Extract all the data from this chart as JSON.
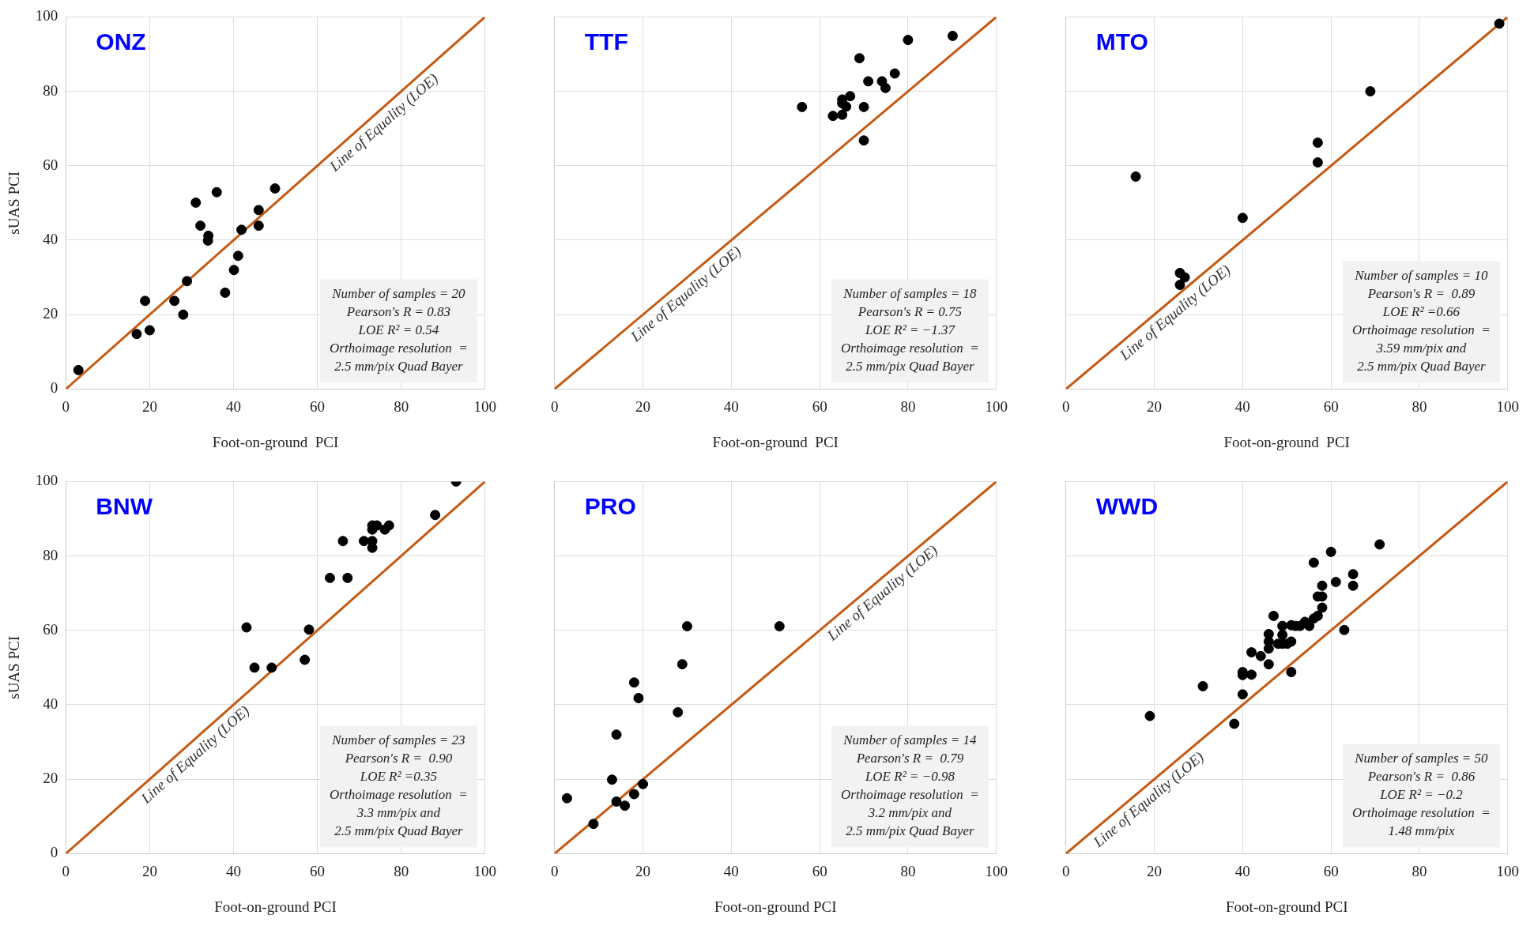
{
  "chart_data": [
    {
      "type": "scatter",
      "title": "ONZ",
      "xlabel": "Foot-on-ground  PCI",
      "ylabel": "sUAS PCI",
      "xlim": [
        0,
        100
      ],
      "ylim": [
        0,
        100
      ],
      "xticks": [
        0,
        20,
        40,
        60,
        80,
        100
      ],
      "yticks": [
        0,
        20,
        40,
        60,
        80,
        100
      ],
      "grid": true,
      "series": [
        {
          "color": "#000000",
          "marker": "circle",
          "x": [
            3,
            16.9,
            18.9,
            20,
            25.9,
            28,
            28.9,
            31,
            32.1,
            34,
            33.9,
            36,
            38,
            40.1,
            41.1,
            41.9,
            46,
            46,
            49.9
          ],
          "values": [
            5.1,
            14.8,
            23.7,
            15.8,
            23.7,
            20,
            29,
            50.1,
            43.9,
            41.2,
            39.9,
            52.9,
            25.9,
            32,
            35.8,
            42.8,
            48.1,
            43.9,
            53.9
          ]
        },
        {
          "type": "line",
          "color": "#c55a11",
          "x": [
            0,
            100
          ],
          "values": [
            0,
            100
          ]
        }
      ],
      "annotations": [
        {
          "text": "Line of Equality (LOE)",
          "x": 74,
          "y": 74
        },
        "Number of samples = 20\nPearson's R = 0.83\nLOE R² = 0.54\nOrthoimage resolution  =\n2.5 mm/pix Quad Bayer"
      ]
    },
    {
      "type": "scatter",
      "title": "TTF",
      "xlabel": "Foot-on-ground  PCI",
      "xlim": [
        0,
        100
      ],
      "ylim": [
        0,
        100
      ],
      "xticks": [
        0,
        20,
        40,
        60,
        80,
        100
      ],
      "yticks": [
        0,
        20,
        40,
        60,
        80,
        100
      ],
      "tick_labels": "x",
      "grid": true,
      "series": [
        {
          "color": "#000000",
          "marker": "circle",
          "x": [
            56,
            63,
            65.1,
            65.1,
            66,
            66.9,
            69,
            70,
            70,
            71,
            74.1,
            74.9,
            77,
            80,
            90.1,
            65.1
          ],
          "values": [
            75.8,
            73.4,
            73.7,
            77.8,
            75.9,
            78.7,
            88.9,
            75.8,
            66.8,
            82.7,
            82.7,
            80.9,
            84.8,
            93.8,
            94.9,
            76.8
          ]
        },
        {
          "type": "line",
          "color": "#c55a11",
          "x": [
            0,
            100
          ],
          "values": [
            0,
            100
          ]
        }
      ],
      "annotations": [
        {
          "text": "Line of Equality (LOE)",
          "x": 28,
          "y": 28
        },
        "Number of samples = 18\nPearson's R = 0.75\nLOE R² = −1.37\nOrthoimage resolution  =\n2.5 mm/pix Quad Bayer"
      ]
    },
    {
      "type": "scatter",
      "title": "MTO",
      "xlabel": "Foot-on-ground  PCI",
      "xlim": [
        0,
        100
      ],
      "ylim": [
        0,
        100
      ],
      "xticks": [
        0,
        20,
        40,
        60,
        80,
        100
      ],
      "yticks": [
        0,
        20,
        40,
        60,
        80,
        100
      ],
      "tick_labels": "x",
      "grid": true,
      "series": [
        {
          "color": "#000000",
          "marker": "circle",
          "x": [
            15.8,
            25.8,
            26.9,
            25.8,
            40,
            57,
            57,
            68.9,
            98.1
          ],
          "values": [
            57.1,
            31.2,
            30,
            28,
            46,
            66.2,
            60.9,
            80,
            98.2
          ]
        },
        {
          "type": "line",
          "color": "#c55a11",
          "x": [
            0,
            100
          ],
          "values": [
            0,
            100
          ]
        }
      ],
      "annotations": [
        {
          "text": "Line of Equality (LOE)",
          "x": 23,
          "y": 23
        },
        "Number of samples = 10\nPearson's R =  0.89\nLOE R² =0.66\nOrthoimage resolution  =\n3.59 mm/pix and\n2.5 mm/pix Quad Bayer"
      ]
    },
    {
      "type": "scatter",
      "title": "BNW",
      "xlabel": "Foot-on-ground PCI",
      "ylabel": "sUAS PCI",
      "xlim": [
        0,
        100
      ],
      "ylim": [
        0,
        100
      ],
      "xticks": [
        0,
        20,
        40,
        60,
        80,
        100
      ],
      "yticks": [
        0,
        20,
        40,
        60,
        80,
        100
      ],
      "grid": true,
      "series": [
        {
          "color": "#000000",
          "marker": "circle",
          "x": [
            43.1,
            45,
            49.1,
            57,
            58,
            63,
            66.1,
            67.2,
            71.1,
            73.1,
            73.1,
            73.1,
            73.1,
            74.2,
            76.1,
            77.1,
            88.1,
            93.1
          ],
          "values": [
            60.8,
            50,
            50,
            52.1,
            60.2,
            74.1,
            84,
            74.1,
            84,
            88.2,
            87.1,
            84,
            82.2,
            88.2,
            87.1,
            88.2,
            91,
            100
          ]
        },
        {
          "type": "line",
          "color": "#c55a11",
          "x": [
            0,
            100
          ],
          "values": [
            0,
            100
          ]
        }
      ],
      "annotations": [
        {
          "text": "Line of Equality (LOE)",
          "x": 29,
          "y": 29
        },
        "Number of samples = 23\nPearson's R =  0.90\nLOE R² =0.35\nOrthoimage resolution  =\n3.3 mm/pix and\n2.5 mm/pix Quad Bayer"
      ]
    },
    {
      "type": "scatter",
      "title": "PRO",
      "xlabel": "Foot-on-ground PCI",
      "xlim": [
        0,
        100
      ],
      "ylim": [
        0,
        100
      ],
      "xticks": [
        0,
        20,
        40,
        60,
        80,
        100
      ],
      "yticks": [
        0,
        20,
        40,
        60,
        80,
        100
      ],
      "tick_labels": "x",
      "grid": true,
      "series": [
        {
          "color": "#000000",
          "marker": "circle",
          "x": [
            2.8,
            8.8,
            13,
            14,
            14,
            15.9,
            18,
            18,
            19,
            20,
            27.9,
            28.9,
            30,
            50.9
          ],
          "values": [
            14.9,
            8,
            19.9,
            32,
            14,
            12.9,
            46,
            16,
            41.8,
            18.7,
            38,
            50.9,
            61.1,
            61.1
          ]
        },
        {
          "type": "line",
          "color": "#c55a11",
          "x": [
            0,
            100
          ],
          "values": [
            0,
            100
          ]
        }
      ],
      "annotations": [
        {
          "text": "Line of Equality (LOE)",
          "x": 72.5,
          "y": 72.5
        },
        "Number of samples = 14\nPearson's R =  0.79\nLOE R² = −0.98\nOrthoimage resolution  =\n3.2 mm/pix and\n2.5 mm/pix Quad Bayer"
      ]
    },
    {
      "type": "scatter",
      "title": "WWD",
      "xlabel": "Foot-on-ground PCI",
      "xlim": [
        0,
        100
      ],
      "ylim": [
        0,
        100
      ],
      "xticks": [
        0,
        20,
        40,
        60,
        80,
        100
      ],
      "yticks": [
        0,
        20,
        40,
        60,
        80,
        100
      ],
      "tick_labels": "x",
      "grid": true,
      "series": [
        {
          "color": "#000000",
          "marker": "circle",
          "x": [
            19,
            31,
            38.1,
            40,
            40,
            40,
            42,
            42,
            44.1,
            45.9,
            45.9,
            45.9,
            45.9,
            47,
            48,
            49,
            49,
            49,
            50.1,
            51,
            51,
            51,
            52,
            53,
            54.1,
            55.1,
            56.1,
            56.1,
            57,
            57,
            58,
            58,
            58,
            60,
            61.1,
            63,
            65,
            65,
            71
          ],
          "values": [
            37,
            45,
            34.9,
            42.8,
            48.8,
            48,
            48.1,
            54.1,
            53.1,
            50.9,
            55.1,
            57,
            59,
            63.9,
            56.4,
            56.4,
            58.8,
            61.2,
            56.4,
            57,
            61.4,
            48.8,
            61.2,
            61.2,
            62.3,
            61.2,
            63.2,
            78.2,
            63.9,
            69.1,
            69.1,
            66.1,
            72,
            81.1,
            73,
            60.1,
            75.1,
            72,
            83.1
          ]
        },
        {
          "type": "line",
          "color": "#c55a11",
          "x": [
            0,
            100
          ],
          "values": [
            0,
            100
          ]
        }
      ],
      "annotations": [
        {
          "text": "Line of Equality (LOE)",
          "x": 17,
          "y": 17
        },
        "Number of samples = 50\nPearson's R =  0.86\nLOE R² = −0.2\nOrthoimage resolution  =\n1.48 mm/pix"
      ]
    }
  ]
}
